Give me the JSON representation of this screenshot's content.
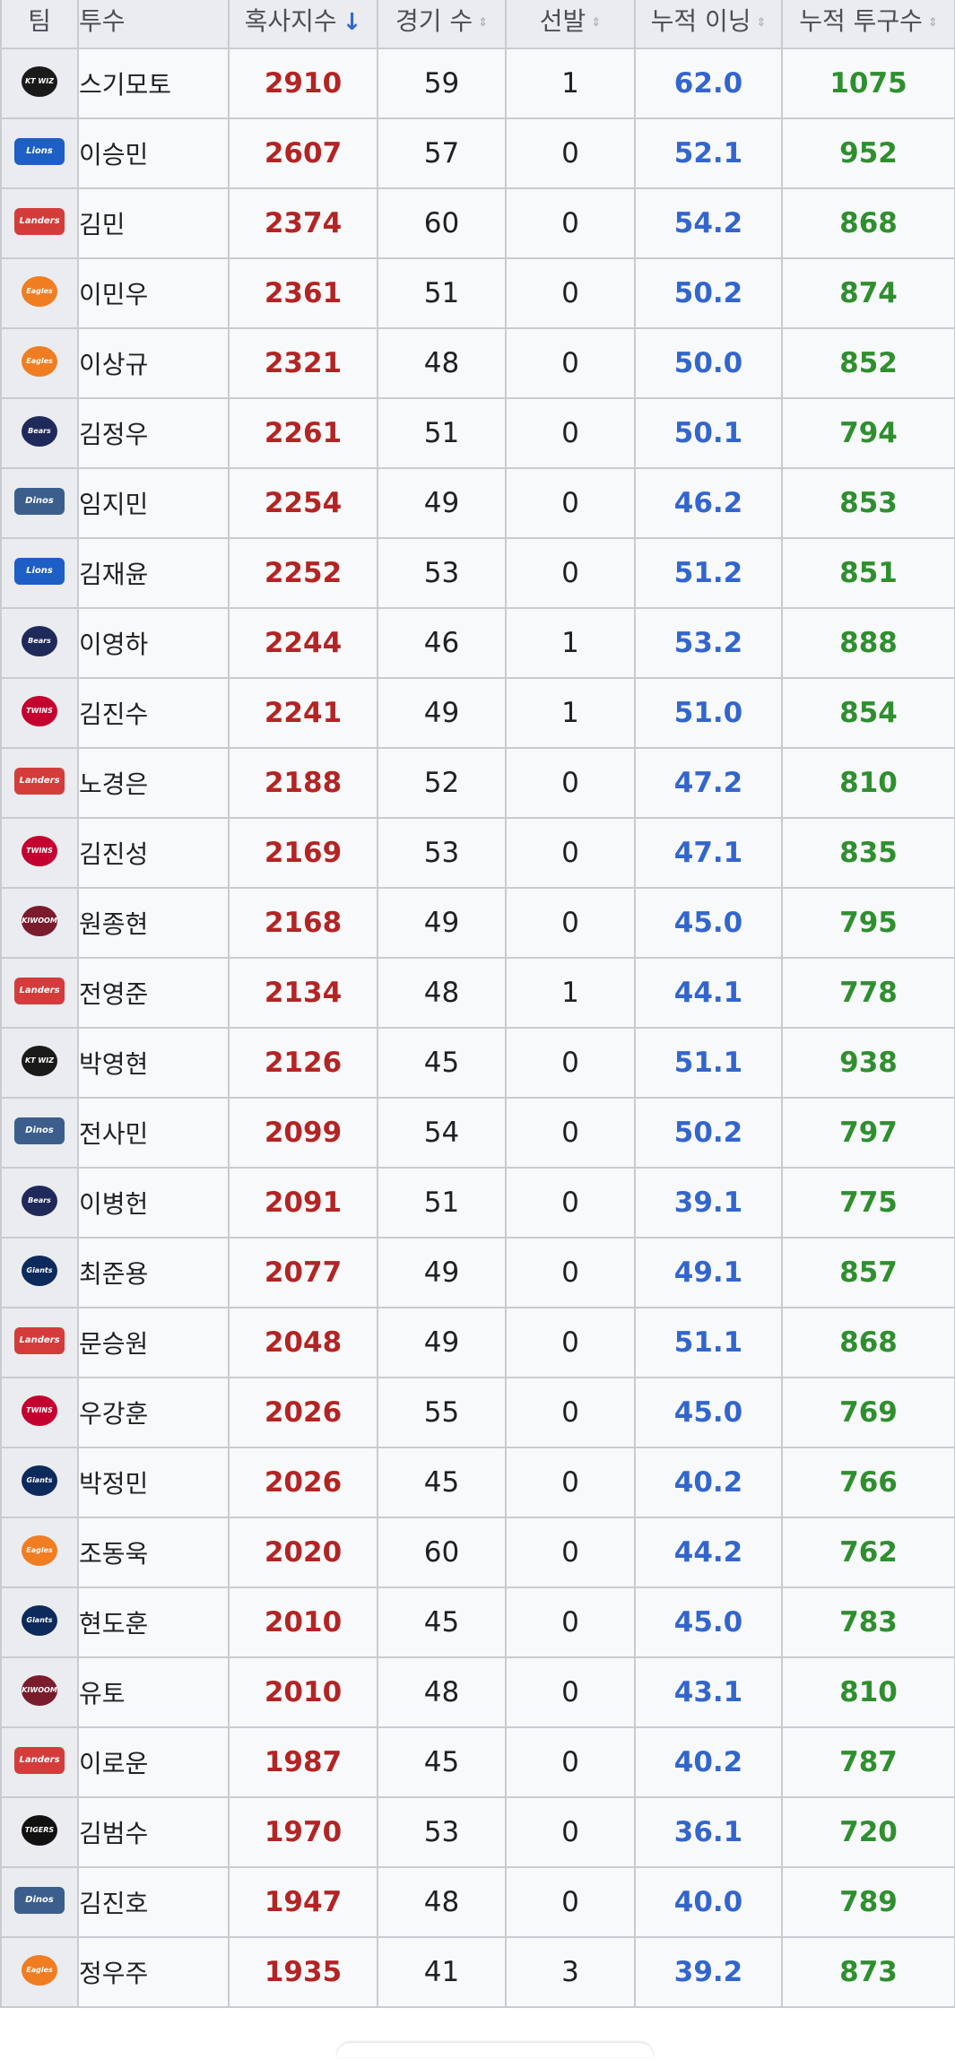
{
  "header": {
    "team": "팀",
    "pitcher": "투수",
    "hits_against": "혹사지수",
    "games": "경기 수",
    "starts": "선발",
    "innings": "누적 이닝",
    "pitches": "누적 투구수"
  },
  "sort_icons": {
    "active": "arrow-down-icon",
    "inactive": "sort-updown-icon"
  },
  "colors": {
    "hits_against": "#b32424",
    "innings": "#3366cc",
    "pitches": "#2f8f2f",
    "header_bg": "#eaecf0",
    "sort_active": "#3366cc"
  },
  "rows": [
    {
      "team_logo": "ktwiz-logo",
      "team_mark": "KT WIZ",
      "pitcher": "스기모토",
      "hits_against": "2910",
      "games": "59",
      "starts": "1",
      "innings": "62.0",
      "pitches": "1075"
    },
    {
      "team_logo": "lions-logo",
      "team_mark": "Lions",
      "pitcher": "이승민",
      "hits_against": "2607",
      "games": "57",
      "starts": "0",
      "innings": "52.1",
      "pitches": "952"
    },
    {
      "team_logo": "landers-logo",
      "team_mark": "Landers",
      "pitcher": "김민",
      "hits_against": "2374",
      "games": "60",
      "starts": "0",
      "innings": "54.2",
      "pitches": "868"
    },
    {
      "team_logo": "eagles-logo",
      "team_mark": "Eagles",
      "pitcher": "이민우",
      "hits_against": "2361",
      "games": "51",
      "starts": "0",
      "innings": "50.2",
      "pitches": "874"
    },
    {
      "team_logo": "eagles-logo",
      "team_mark": "Eagles",
      "pitcher": "이상규",
      "hits_against": "2321",
      "games": "48",
      "starts": "0",
      "innings": "50.0",
      "pitches": "852"
    },
    {
      "team_logo": "bears-logo",
      "team_mark": "Bears",
      "pitcher": "김정우",
      "hits_against": "2261",
      "games": "51",
      "starts": "0",
      "innings": "50.1",
      "pitches": "794"
    },
    {
      "team_logo": "dinos-logo",
      "team_mark": "Dinos",
      "pitcher": "임지민",
      "hits_against": "2254",
      "games": "49",
      "starts": "0",
      "innings": "46.2",
      "pitches": "853"
    },
    {
      "team_logo": "lions-logo",
      "team_mark": "Lions",
      "pitcher": "김재윤",
      "hits_against": "2252",
      "games": "53",
      "starts": "0",
      "innings": "51.2",
      "pitches": "851"
    },
    {
      "team_logo": "bears-logo",
      "team_mark": "Bears",
      "pitcher": "이영하",
      "hits_against": "2244",
      "games": "46",
      "starts": "1",
      "innings": "53.2",
      "pitches": "888"
    },
    {
      "team_logo": "twins-logo",
      "team_mark": "TWINS",
      "pitcher": "김진수",
      "hits_against": "2241",
      "games": "49",
      "starts": "1",
      "innings": "51.0",
      "pitches": "854"
    },
    {
      "team_logo": "landers-logo",
      "team_mark": "Landers",
      "pitcher": "노경은",
      "hits_against": "2188",
      "games": "52",
      "starts": "0",
      "innings": "47.2",
      "pitches": "810"
    },
    {
      "team_logo": "twins-logo",
      "team_mark": "TWINS",
      "pitcher": "김진성",
      "hits_against": "2169",
      "games": "53",
      "starts": "0",
      "innings": "47.1",
      "pitches": "835"
    },
    {
      "team_logo": "kiwoom-logo",
      "team_mark": "KIWOOM",
      "pitcher": "원종현",
      "hits_against": "2168",
      "games": "49",
      "starts": "0",
      "innings": "45.0",
      "pitches": "795"
    },
    {
      "team_logo": "landers-logo",
      "team_mark": "Landers",
      "pitcher": "전영준",
      "hits_against": "2134",
      "games": "48",
      "starts": "1",
      "innings": "44.1",
      "pitches": "778"
    },
    {
      "team_logo": "ktwiz-logo",
      "team_mark": "KT WIZ",
      "pitcher": "박영현",
      "hits_against": "2126",
      "games": "45",
      "starts": "0",
      "innings": "51.1",
      "pitches": "938"
    },
    {
      "team_logo": "dinos-logo",
      "team_mark": "Dinos",
      "pitcher": "전사민",
      "hits_against": "2099",
      "games": "54",
      "starts": "0",
      "innings": "50.2",
      "pitches": "797"
    },
    {
      "team_logo": "bears-logo",
      "team_mark": "Bears",
      "pitcher": "이병헌",
      "hits_against": "2091",
      "games": "51",
      "starts": "0",
      "innings": "39.1",
      "pitches": "775"
    },
    {
      "team_logo": "giants-logo",
      "team_mark": "Giants",
      "pitcher": "최준용",
      "hits_against": "2077",
      "games": "49",
      "starts": "0",
      "innings": "49.1",
      "pitches": "857"
    },
    {
      "team_logo": "landers-logo",
      "team_mark": "Landers",
      "pitcher": "문승원",
      "hits_against": "2048",
      "games": "49",
      "starts": "0",
      "innings": "51.1",
      "pitches": "868"
    },
    {
      "team_logo": "twins-logo",
      "team_mark": "TWINS",
      "pitcher": "우강훈",
      "hits_against": "2026",
      "games": "55",
      "starts": "0",
      "innings": "45.0",
      "pitches": "769"
    },
    {
      "team_logo": "giants-logo",
      "team_mark": "Giants",
      "pitcher": "박정민",
      "hits_against": "2026",
      "games": "45",
      "starts": "0",
      "innings": "40.2",
      "pitches": "766"
    },
    {
      "team_logo": "eagles-logo",
      "team_mark": "Eagles",
      "pitcher": "조동욱",
      "hits_against": "2020",
      "games": "60",
      "starts": "0",
      "innings": "44.2",
      "pitches": "762"
    },
    {
      "team_logo": "giants-logo",
      "team_mark": "Giants",
      "pitcher": "현도훈",
      "hits_against": "2010",
      "games": "45",
      "starts": "0",
      "innings": "45.0",
      "pitches": "783"
    },
    {
      "team_logo": "kiwoom-logo",
      "team_mark": "KIWOOM",
      "pitcher": "유토",
      "hits_against": "2010",
      "games": "48",
      "starts": "0",
      "innings": "43.1",
      "pitches": "810"
    },
    {
      "team_logo": "landers-logo",
      "team_mark": "Landers",
      "pitcher": "이로운",
      "hits_against": "1987",
      "games": "45",
      "starts": "0",
      "innings": "40.2",
      "pitches": "787"
    },
    {
      "team_logo": "tigers-logo",
      "team_mark": "TIGERS",
      "pitcher": "김범수",
      "hits_against": "1970",
      "games": "53",
      "starts": "0",
      "innings": "36.1",
      "pitches": "720"
    },
    {
      "team_logo": "dinos-logo",
      "team_mark": "Dinos",
      "pitcher": "김진호",
      "hits_against": "1947",
      "games": "48",
      "starts": "0",
      "innings": "40.0",
      "pitches": "789"
    },
    {
      "team_logo": "eagles-logo",
      "team_mark": "Eagles",
      "pitcher": "정우주",
      "hits_against": "1935",
      "games": "41",
      "starts": "3",
      "innings": "39.2",
      "pitches": "873"
    }
  ]
}
